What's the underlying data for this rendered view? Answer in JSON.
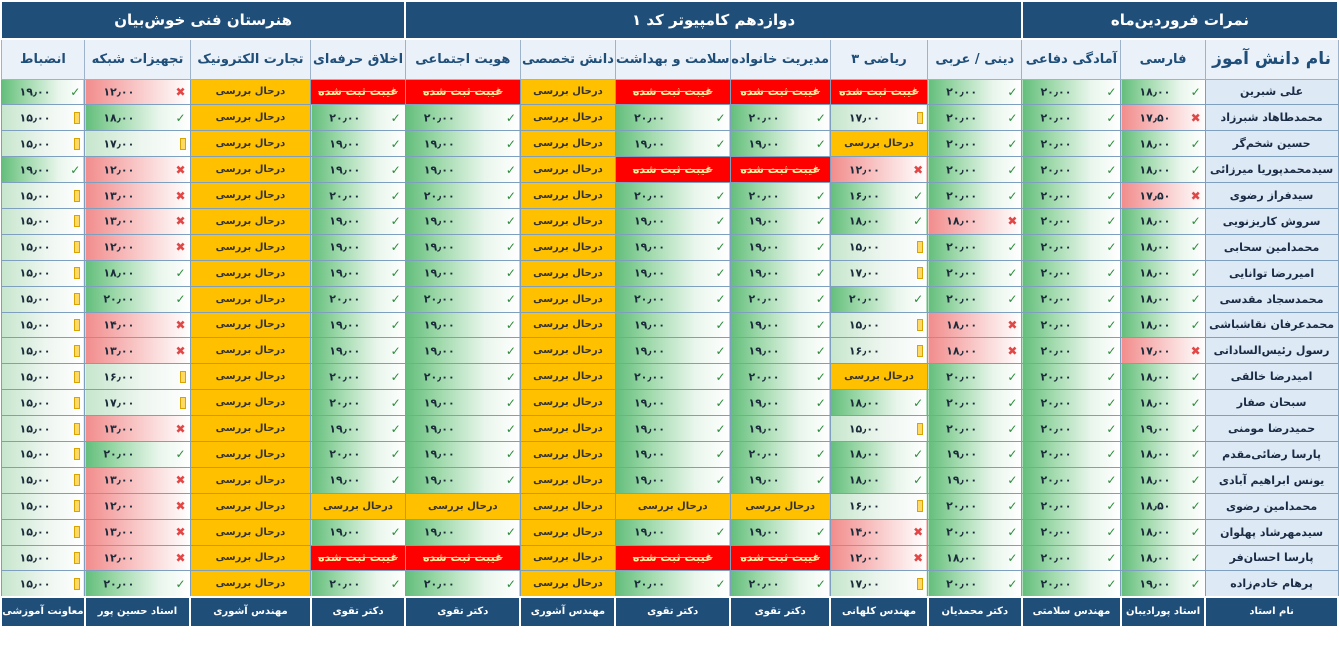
{
  "groups": [
    {
      "label": "نمرات فروردین‌ماه",
      "span": 3
    },
    {
      "label": "دوازدهم کامپیوتر کد ۱",
      "span": 6
    },
    {
      "label": "هنرستان فنی خوش‌بیان",
      "span": 5
    }
  ],
  "columns": [
    "نام دانش آموز",
    "فارسی",
    "آمادگی دفاعی",
    "دینی / عربی",
    "ریاضی ۳",
    "مدیریت خانواده",
    "سلامت و بهداشت",
    "دانش تخصصی",
    "هویت اجتماعی",
    "اخلاق حرفه‌ای",
    "تجارت الکترونیک",
    "تجهیزات شبکه",
    "انضباط"
  ],
  "rows": [
    {
      "name": "علی شبرین",
      "cells": [
        "ok|۱۸٫۰۰",
        "ok|۲۰٫۰۰",
        "ok|۲۰٫۰۰",
        "miss|غیبت ثبت شده",
        "miss|غیبت ثبت شده",
        "miss|غیبت ثبت شده",
        "pend|درحال بررسی",
        "miss|غیبت ثبت شده",
        "miss|غیبت ثبت شده",
        "pend|درحال بررسی",
        "bad|۱۲٫۰۰",
        "ok|۱۹٫۰۰"
      ]
    },
    {
      "name": "محمدطاهاد شبرزاد",
      "cells": [
        "bad|۱۷٫۵۰",
        "ok|۲۰٫۰۰",
        "ok|۲۰٫۰۰",
        "warn|۱۷٫۰۰",
        "ok|۲۰٫۰۰",
        "ok|۲۰٫۰۰",
        "pend|درحال بررسی",
        "ok|۲۰٫۰۰",
        "ok|۲۰٫۰۰",
        "pend|درحال بررسی",
        "ok|۱۸٫۰۰",
        "warn|۱۵٫۰۰"
      ]
    },
    {
      "name": "حسین شخم‌گر",
      "cells": [
        "ok|۱۸٫۰۰",
        "ok|۲۰٫۰۰",
        "ok|۲۰٫۰۰",
        "pend|درحال بررسی",
        "ok|۱۹٫۰۰",
        "ok|۱۹٫۰۰",
        "pend|درحال بررسی",
        "ok|۱۹٫۰۰",
        "ok|۱۹٫۰۰",
        "pend|درحال بررسی",
        "warn|۱۷٫۰۰",
        "warn|۱۵٫۰۰"
      ]
    },
    {
      "name": "سیدمحمدپوریا میرزائی",
      "cells": [
        "ok|۱۸٫۰۰",
        "ok|۲۰٫۰۰",
        "ok|۲۰٫۰۰",
        "bad|۱۲٫۰۰",
        "miss|غیبت ثبت شده",
        "miss|غیبت ثبت شده",
        "pend|درحال بررسی",
        "ok|۱۹٫۰۰",
        "ok|۱۹٫۰۰",
        "pend|درحال بررسی",
        "bad|۱۲٫۰۰",
        "ok|۱۹٫۰۰"
      ]
    },
    {
      "name": "سیدفراز رضوی",
      "cells": [
        "bad|۱۷٫۵۰",
        "ok|۲۰٫۰۰",
        "ok|۲۰٫۰۰",
        "ok|۱۶٫۰۰",
        "ok|۲۰٫۰۰",
        "ok|۲۰٫۰۰",
        "pend|درحال بررسی",
        "ok|۲۰٫۰۰",
        "ok|۲۰٫۰۰",
        "pend|درحال بررسی",
        "bad|۱۳٫۰۰",
        "warn|۱۵٫۰۰"
      ]
    },
    {
      "name": "سروش کاریزنویی",
      "cells": [
        "ok|۱۸٫۰۰",
        "ok|۲۰٫۰۰",
        "bad|۱۸٫۰۰",
        "ok|۱۸٫۰۰",
        "ok|۱۹٫۰۰",
        "ok|۱۹٫۰۰",
        "pend|درحال بررسی",
        "ok|۱۹٫۰۰",
        "ok|۱۹٫۰۰",
        "pend|درحال بررسی",
        "bad|۱۳٫۰۰",
        "warn|۱۵٫۰۰"
      ]
    },
    {
      "name": "محمدامین سحابی",
      "cells": [
        "ok|۱۸٫۰۰",
        "ok|۲۰٫۰۰",
        "ok|۲۰٫۰۰",
        "warn|۱۵٫۰۰",
        "ok|۱۹٫۰۰",
        "ok|۱۹٫۰۰",
        "pend|درحال بررسی",
        "ok|۱۹٫۰۰",
        "ok|۱۹٫۰۰",
        "pend|درحال بررسی",
        "bad|۱۲٫۰۰",
        "warn|۱۵٫۰۰"
      ]
    },
    {
      "name": "امیررضا توانایی",
      "cells": [
        "ok|۱۸٫۰۰",
        "ok|۲۰٫۰۰",
        "ok|۲۰٫۰۰",
        "warn|۱۷٫۰۰",
        "ok|۱۹٫۰۰",
        "ok|۱۹٫۰۰",
        "pend|درحال بررسی",
        "ok|۱۹٫۰۰",
        "ok|۱۹٫۰۰",
        "pend|درحال بررسی",
        "ok|۱۸٫۰۰",
        "warn|۱۵٫۰۰"
      ]
    },
    {
      "name": "محمدسجاد مقدسی",
      "cells": [
        "ok|۱۸٫۰۰",
        "ok|۲۰٫۰۰",
        "ok|۲۰٫۰۰",
        "ok|۲۰٫۰۰",
        "ok|۲۰٫۰۰",
        "ok|۲۰٫۰۰",
        "pend|درحال بررسی",
        "ok|۲۰٫۰۰",
        "ok|۲۰٫۰۰",
        "pend|درحال بررسی",
        "ok|۲۰٫۰۰",
        "warn|۱۵٫۰۰"
      ]
    },
    {
      "name": "محمدعرفان نقاشباشی",
      "cells": [
        "ok|۱۸٫۰۰",
        "ok|۲۰٫۰۰",
        "bad|۱۸٫۰۰",
        "warn|۱۵٫۰۰",
        "ok|۱۹٫۰۰",
        "ok|۱۹٫۰۰",
        "pend|درحال بررسی",
        "ok|۱۹٫۰۰",
        "ok|۱۹٫۰۰",
        "pend|درحال بررسی",
        "bad|۱۴٫۰۰",
        "warn|۱۵٫۰۰"
      ]
    },
    {
      "name": "رسول رئیس‌الساداتی",
      "cells": [
        "bad|۱۷٫۰۰",
        "ok|۲۰٫۰۰",
        "bad|۱۸٫۰۰",
        "warn|۱۶٫۰۰",
        "ok|۱۹٫۰۰",
        "ok|۱۹٫۰۰",
        "pend|درحال بررسی",
        "ok|۱۹٫۰۰",
        "ok|۱۹٫۰۰",
        "pend|درحال بررسی",
        "bad|۱۳٫۰۰",
        "warn|۱۵٫۰۰"
      ]
    },
    {
      "name": "امیدرضا خالقی",
      "cells": [
        "ok|۱۸٫۰۰",
        "ok|۲۰٫۰۰",
        "ok|۲۰٫۰۰",
        "pend|درحال بررسی",
        "ok|۲۰٫۰۰",
        "ok|۲۰٫۰۰",
        "pend|درحال بررسی",
        "ok|۲۰٫۰۰",
        "ok|۲۰٫۰۰",
        "pend|درحال بررسی",
        "warn|۱۶٫۰۰",
        "warn|۱۵٫۰۰"
      ]
    },
    {
      "name": "سبحان صفار",
      "cells": [
        "ok|۱۸٫۰۰",
        "ok|۲۰٫۰۰",
        "ok|۲۰٫۰۰",
        "ok|۱۸٫۰۰",
        "ok|۱۹٫۰۰",
        "ok|۱۹٫۰۰",
        "pend|درحال بررسی",
        "ok|۱۹٫۰۰",
        "ok|۲۰٫۰۰",
        "pend|درحال بررسی",
        "warn|۱۷٫۰۰",
        "warn|۱۵٫۰۰"
      ]
    },
    {
      "name": "حمیدرضا مومنی",
      "cells": [
        "ok|۱۹٫۰۰",
        "ok|۲۰٫۰۰",
        "ok|۲۰٫۰۰",
        "warn|۱۵٫۰۰",
        "ok|۱۹٫۰۰",
        "ok|۱۹٫۰۰",
        "pend|درحال بررسی",
        "ok|۱۹٫۰۰",
        "ok|۱۹٫۰۰",
        "pend|درحال بررسی",
        "bad|۱۳٫۰۰",
        "warn|۱۵٫۰۰"
      ]
    },
    {
      "name": "پارسا رضائی‌مقدم",
      "cells": [
        "ok|۱۸٫۰۰",
        "ok|۲۰٫۰۰",
        "ok|۱۹٫۰۰",
        "ok|۱۸٫۰۰",
        "ok|۲۰٫۰۰",
        "ok|۱۹٫۰۰",
        "pend|درحال بررسی",
        "ok|۱۹٫۰۰",
        "ok|۲۰٫۰۰",
        "pend|درحال بررسی",
        "ok|۲۰٫۰۰",
        "warn|۱۵٫۰۰"
      ]
    },
    {
      "name": "یونس ابراهیم آبادی",
      "cells": [
        "ok|۱۸٫۰۰",
        "ok|۲۰٫۰۰",
        "ok|۱۹٫۰۰",
        "ok|۱۸٫۰۰",
        "ok|۱۹٫۰۰",
        "ok|۱۹٫۰۰",
        "pend|درحال بررسی",
        "ok|۱۹٫۰۰",
        "ok|۱۹٫۰۰",
        "pend|درحال بررسی",
        "bad|۱۳٫۰۰",
        "warn|۱۵٫۰۰"
      ]
    },
    {
      "name": "محمدامین رضوی",
      "cells": [
        "ok|۱۸٫۵۰",
        "ok|۲۰٫۰۰",
        "ok|۲۰٫۰۰",
        "warn|۱۶٫۰۰",
        "pend|درحال بررسی",
        "pend|درحال بررسی",
        "pend|درحال بررسی",
        "pend|درحال بررسی",
        "pend|درحال بررسی",
        "pend|درحال بررسی",
        "bad|۱۲٫۰۰",
        "warn|۱۵٫۰۰"
      ]
    },
    {
      "name": "سیدمهرشاد پهلوان",
      "cells": [
        "ok|۱۸٫۰۰",
        "ok|۲۰٫۰۰",
        "ok|۲۰٫۰۰",
        "bad|۱۴٫۰۰",
        "ok|۱۹٫۰۰",
        "ok|۱۹٫۰۰",
        "pend|درحال بررسی",
        "ok|۱۹٫۰۰",
        "ok|۱۹٫۰۰",
        "pend|درحال بررسی",
        "bad|۱۳٫۰۰",
        "warn|۱۵٫۰۰"
      ]
    },
    {
      "name": "پارسا احسان‌فر",
      "cells": [
        "ok|۱۸٫۰۰",
        "ok|۲۰٫۰۰",
        "ok|۱۸٫۰۰",
        "bad|۱۲٫۰۰",
        "miss|غیبت ثبت شده",
        "miss|غیبت ثبت شده",
        "pend|درحال بررسی",
        "miss|غیبت ثبت شده",
        "miss|غیبت ثبت شده",
        "pend|درحال بررسی",
        "bad|۱۲٫۰۰",
        "warn|۱۵٫۰۰"
      ]
    },
    {
      "name": "پرهام خادم‌زاده",
      "cells": [
        "ok|۱۹٫۰۰",
        "ok|۲۰٫۰۰",
        "ok|۲۰٫۰۰",
        "warn|۱۷٫۰۰",
        "ok|۲۰٫۰۰",
        "ok|۲۰٫۰۰",
        "pend|درحال بررسی",
        "ok|۲۰٫۰۰",
        "ok|۲۰٫۰۰",
        "pend|درحال بررسی",
        "ok|۲۰٫۰۰",
        "warn|۱۵٫۰۰"
      ]
    }
  ],
  "teachers": [
    "نام استاد",
    "استاد پورادیبان",
    "مهندس سلامتی",
    "دکتر محمدیان",
    "مهندس کلهانی",
    "دکتر تقوی",
    "دکتر تقوی",
    "مهندس آشوری",
    "دکتر تقوی",
    "دکتر تقوی",
    "مهندس آشوری",
    "استاد حسین پور",
    "معاونت آموزشی"
  ],
  "icons": {
    "ok": "check-icon",
    "warn": "flag-icon",
    "bad": "cross-icon"
  },
  "colors": {
    "header": "#1f4e79",
    "pending": "#ffc000",
    "absent": "#ff0000",
    "good": "#63be7b",
    "poor": "#f28c8c"
  }
}
